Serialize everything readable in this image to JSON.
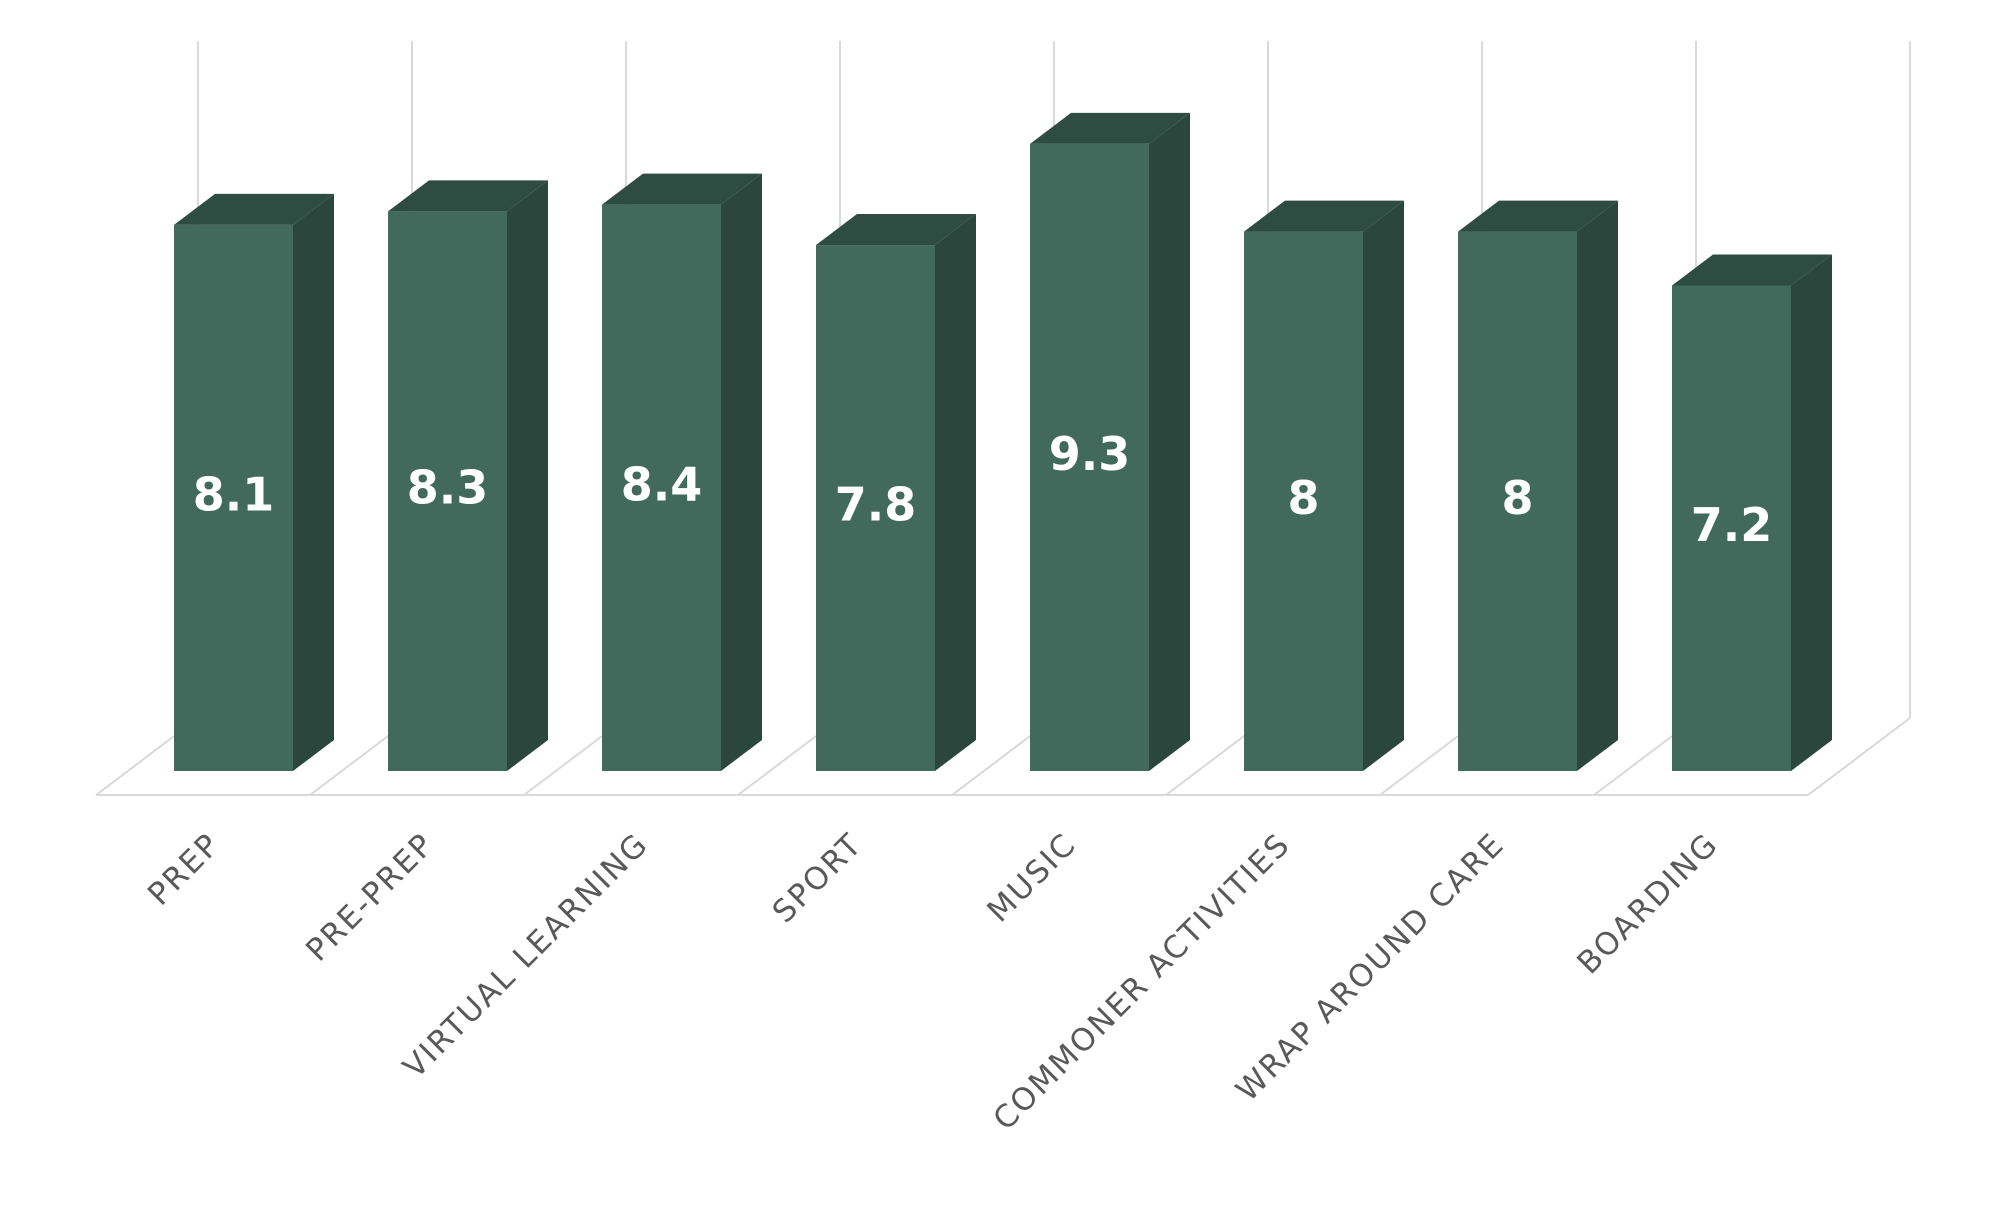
{
  "chart_data": {
    "type": "bar3d",
    "categories": [
      "PREP",
      "PRE-PREP",
      "VIRTUAL LEARNING",
      "SPORT",
      "MUSIC",
      "COMMONER ACTIVITIES",
      "WRAP AROUND CARE",
      "BOARDING"
    ],
    "values": [
      8.1,
      8.3,
      8.4,
      7.8,
      9.3,
      8,
      8,
      7.2
    ],
    "color": "#416a5c",
    "ylim": [
      0,
      10.5
    ],
    "grid": true
  }
}
